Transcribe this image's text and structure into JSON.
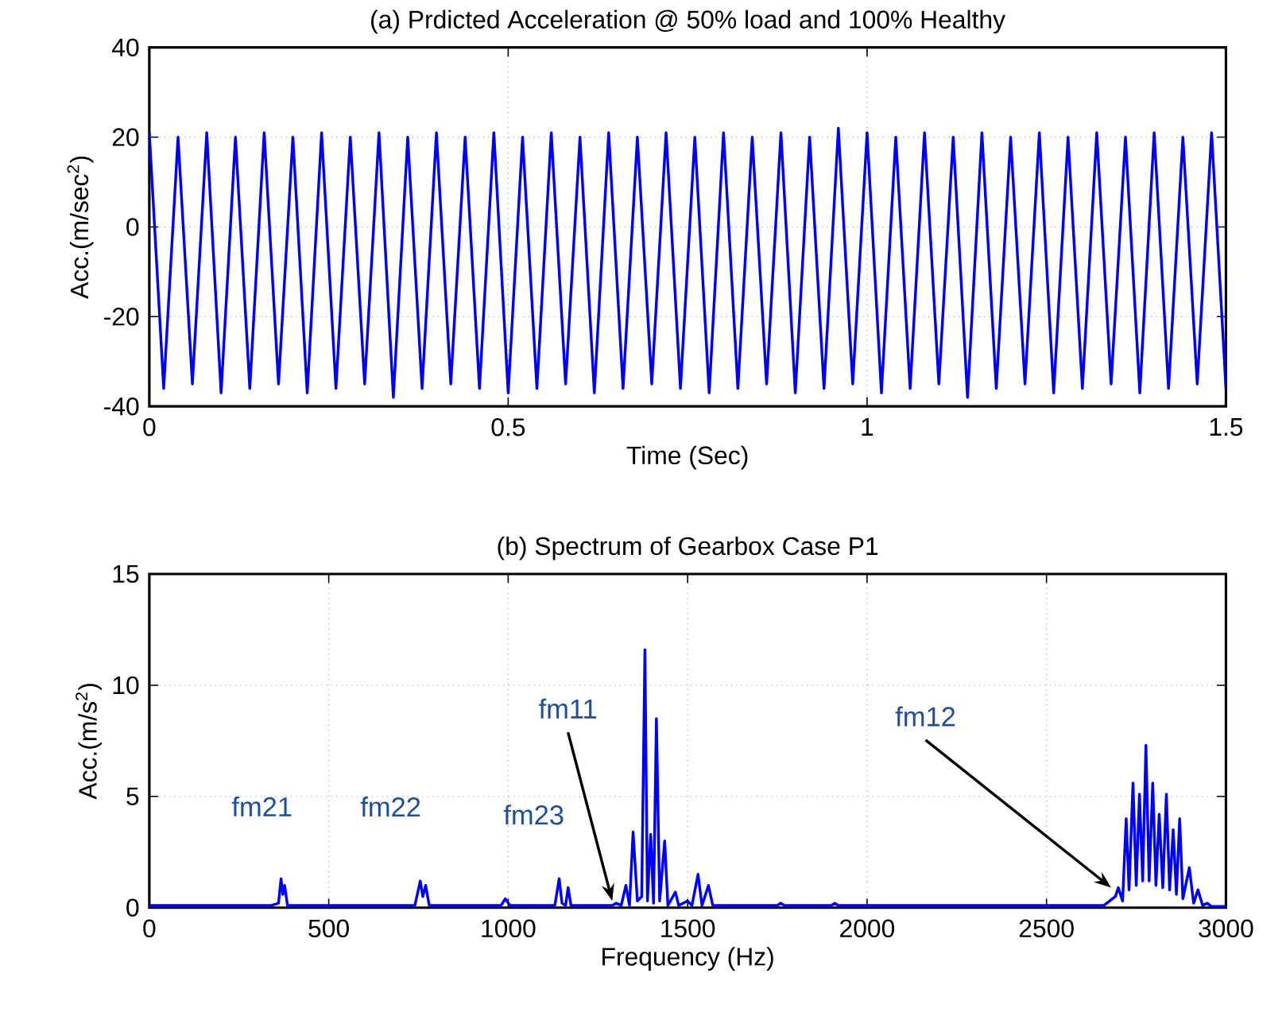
{
  "chart_data": [
    {
      "type": "line",
      "title": "(a) Prdicted Acceleration @ 50% load and 100% Healthy",
      "xlabel": "Time (Sec)",
      "ylabel": "Acc.(m/sec$^{2}$)",
      "xlim": [
        0,
        1.5
      ],
      "ylim": [
        -40,
        40
      ],
      "xticks": [
        0,
        0.5,
        1,
        1.5
      ],
      "yticks": [
        -40,
        -20,
        0,
        20,
        40
      ],
      "grid": true,
      "series": [
        {
          "color": "#0000ff",
          "x": [
            0,
            0.02,
            0.04,
            0.06,
            0.08,
            0.1,
            0.12,
            0.14,
            0.16,
            0.18,
            0.2,
            0.22,
            0.24,
            0.26,
            0.28,
            0.3,
            0.32,
            0.34,
            0.36,
            0.38,
            0.4,
            0.42,
            0.44,
            0.46,
            0.48,
            0.5,
            0.52,
            0.54,
            0.56,
            0.58,
            0.6,
            0.62,
            0.64,
            0.66,
            0.68,
            0.7,
            0.72,
            0.74,
            0.76,
            0.78,
            0.8,
            0.82,
            0.84,
            0.86,
            0.88,
            0.9,
            0.92,
            0.94,
            0.96,
            0.98,
            1,
            1.02,
            1.04,
            1.06,
            1.08,
            1.1,
            1.12,
            1.14,
            1.16,
            1.18,
            1.2,
            1.22,
            1.24,
            1.26,
            1.28,
            1.3,
            1.32,
            1.34,
            1.36,
            1.38,
            1.4,
            1.42,
            1.44,
            1.46,
            1.48,
            1.5
          ],
          "values": [
            21,
            -36,
            20,
            -35,
            21,
            -37,
            20,
            -36,
            21,
            -35,
            20,
            -37,
            21,
            -36,
            20,
            -35,
            21,
            -38,
            20,
            -36,
            21,
            -35,
            20,
            -36,
            21,
            -37,
            20,
            -36,
            21,
            -35,
            20,
            -37,
            21,
            -36,
            20,
            -35,
            21,
            -36,
            20,
            -37,
            21,
            -36,
            20,
            -35,
            21,
            -37,
            20,
            -36,
            22,
            -35,
            21,
            -37,
            20,
            -36,
            21,
            -35,
            20,
            -38,
            21,
            -36,
            20,
            -35,
            21,
            -37,
            20,
            -36,
            21,
            -35,
            20,
            -37,
            21,
            -36,
            20,
            -35,
            21,
            -36
          ]
        }
      ]
    },
    {
      "type": "line",
      "title": "(b) Spectrum of Gearbox Case P1",
      "xlabel": "Frequency (Hz)",
      "ylabel": "Acc.(m/s$^{2}$)",
      "xlim": [
        0,
        3000
      ],
      "ylim": [
        0,
        15
      ],
      "xticks": [
        0,
        500,
        1000,
        1500,
        2000,
        2500,
        3000
      ],
      "yticks": [
        0,
        5,
        10,
        15
      ],
      "grid": true,
      "series": [
        {
          "color": "#0000ff",
          "x": [
            0,
            340,
            360,
            367,
            372,
            377,
            385,
            740,
            755,
            762,
            770,
            780,
            980,
            992,
            1005,
            1130,
            1142,
            1150,
            1160,
            1167,
            1175,
            1290,
            1301,
            1315,
            1328,
            1338,
            1348,
            1360,
            1372,
            1381,
            1388,
            1397,
            1405,
            1413,
            1422,
            1436,
            1445,
            1466,
            1475,
            1500,
            1512,
            1529,
            1540,
            1558,
            1570,
            1750,
            1759,
            1770,
            1900,
            1910,
            1920,
            2660,
            2692,
            2700,
            2712,
            2722,
            2730,
            2741,
            2750,
            2759,
            2768,
            2777,
            2786,
            2796,
            2805,
            2814,
            2824,
            2834,
            2843,
            2853,
            2862,
            2871,
            2880,
            2898,
            2910,
            2922,
            2935,
            2948,
            2960,
            3000
          ],
          "values": [
            0.1,
            0.1,
            0.2,
            1.3,
            0.6,
            1.0,
            0.1,
            0.1,
            1.2,
            0.5,
            1.0,
            0.1,
            0.1,
            0.4,
            0.1,
            0.1,
            1.3,
            0.2,
            0.1,
            0.9,
            0.1,
            0.1,
            0.2,
            0.1,
            1.0,
            0.1,
            3.4,
            0.3,
            0.5,
            11.6,
            0.3,
            3.3,
            0.2,
            8.5,
            0.3,
            3.0,
            0.1,
            0.7,
            0.1,
            0.3,
            0.1,
            1.5,
            0.1,
            1.0,
            0.1,
            0.1,
            0.2,
            0.1,
            0.1,
            0.2,
            0.1,
            0.1,
            0.5,
            0.9,
            0.3,
            4.0,
            0.8,
            5.6,
            1.0,
            5.1,
            1.2,
            7.3,
            1.2,
            5.6,
            1.0,
            4.2,
            0.9,
            5.1,
            0.8,
            3.5,
            0.6,
            4.0,
            0.4,
            1.8,
            0.2,
            0.8,
            0.1,
            0.2,
            0.05,
            0.05
          ]
        }
      ],
      "annotations": [
        {
          "text": "fm21",
          "x": 367,
          "y": 1.3
        },
        {
          "text": "fm22",
          "x": 755,
          "y": 1.2
        },
        {
          "text": "fm23",
          "x": 1142,
          "y": 1.3
        },
        {
          "text": "fm11",
          "x": 1290,
          "y": 0.3
        },
        {
          "text": "fm12",
          "x": 2680,
          "y": 0.9
        }
      ]
    }
  ]
}
